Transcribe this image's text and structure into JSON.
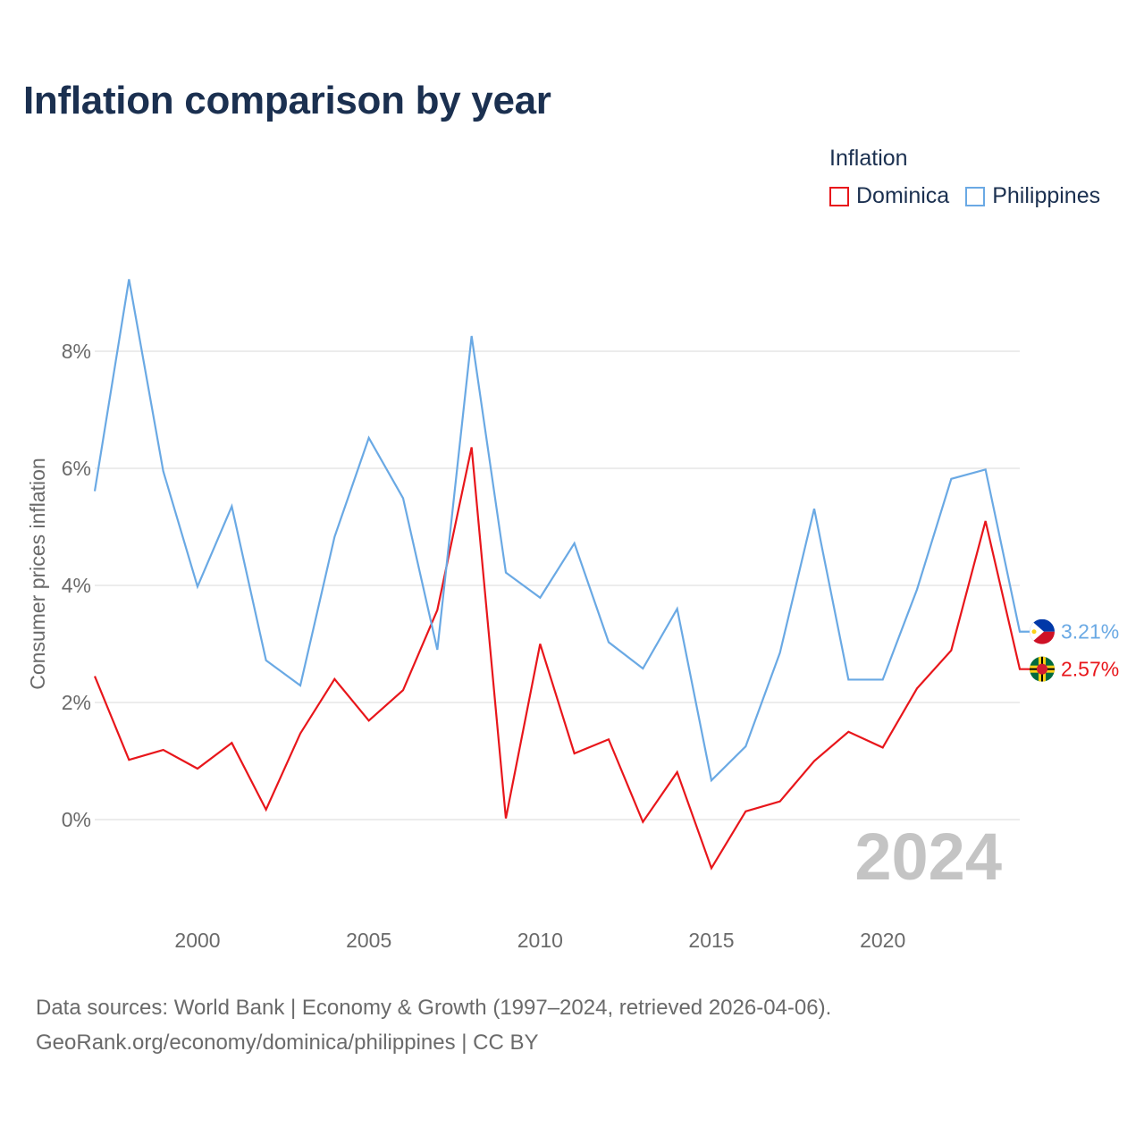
{
  "title": "Inflation comparison by year",
  "legend": {
    "title": "Inflation",
    "items": [
      {
        "label": "Dominica",
        "color": "#e8161b"
      },
      {
        "label": "Philippines",
        "color": "#6aa9e4"
      }
    ]
  },
  "footer": {
    "line1": "Data sources: World Bank | Economy & Growth (1997–2024, retrieved 2026-04-06).",
    "line2": "GeoRank.org/economy/dominica/philippines | CC BY"
  },
  "chart_data": {
    "type": "line",
    "title": "Inflation comparison by year",
    "xlabel": "",
    "ylabel": "Consumer prices inflation",
    "current_year": "2024",
    "x": [
      1997,
      1998,
      1999,
      2000,
      2001,
      2002,
      2003,
      2004,
      2005,
      2006,
      2007,
      2008,
      2009,
      2010,
      2011,
      2012,
      2013,
      2014,
      2015,
      2016,
      2017,
      2018,
      2019,
      2020,
      2021,
      2022,
      2023,
      2024
    ],
    "xlim": [
      1997,
      2024
    ],
    "ylim": [
      -1.8,
      9.5
    ],
    "x_ticks": [
      2000,
      2005,
      2010,
      2015,
      2020
    ],
    "y_ticks": [
      0,
      2,
      4,
      6,
      8
    ],
    "y_tick_labels": [
      "0%",
      "2%",
      "4%",
      "6%",
      "8%"
    ],
    "grid": true,
    "legend_position": "top-right",
    "series": [
      {
        "name": "Dominica",
        "color": "#e8161b",
        "end_label": "2.57%",
        "flag": "dominica-flag-icon",
        "values": [
          2.45,
          1.02,
          1.19,
          0.87,
          1.31,
          0.17,
          1.47,
          2.4,
          1.69,
          2.21,
          3.58,
          6.36,
          0.02,
          3.0,
          1.13,
          1.37,
          -0.04,
          0.81,
          -0.83,
          0.14,
          0.31,
          1.0,
          1.5,
          1.23,
          2.24,
          2.89,
          5.1,
          2.57
        ]
      },
      {
        "name": "Philippines",
        "color": "#6aa9e4",
        "end_label": "3.21%",
        "flag": "philippines-flag-icon",
        "values": [
          5.61,
          9.23,
          5.95,
          3.98,
          5.35,
          2.72,
          2.29,
          4.83,
          6.52,
          5.49,
          2.9,
          8.26,
          4.22,
          3.79,
          4.72,
          3.03,
          2.58,
          3.6,
          0.67,
          1.25,
          2.85,
          5.31,
          2.39,
          2.39,
          3.93,
          5.82,
          5.98,
          3.21
        ]
      }
    ]
  }
}
